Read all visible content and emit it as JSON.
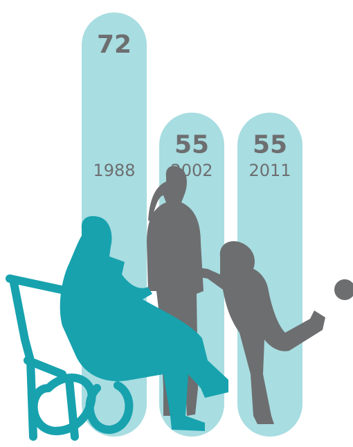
{
  "chart_data": {
    "type": "bar",
    "categories": [
      "1988",
      "2002",
      "2011"
    ],
    "values": [
      72,
      55,
      55
    ],
    "color": "#a8dde1"
  }
}
